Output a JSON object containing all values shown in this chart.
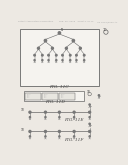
{
  "bg_color": "#ede9e3",
  "box_color": "#f5f3ef",
  "line_color": "#666666",
  "text_color": "#444444",
  "node_color": "#777777",
  "dark_node": "#444444",
  "header_color": "#aaaaaa",
  "fig_label_color": "#555555"
}
